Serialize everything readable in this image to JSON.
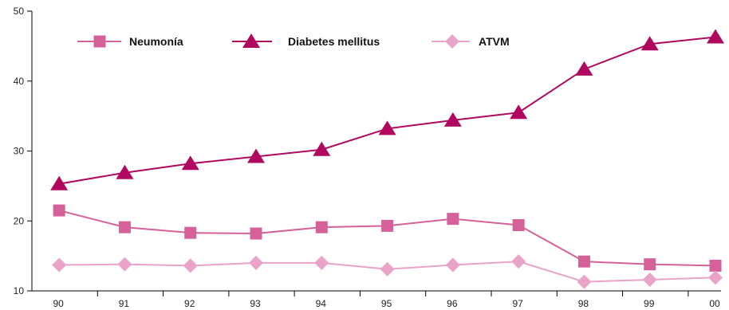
{
  "chart_data": {
    "type": "line",
    "title": "",
    "xlabel": "",
    "ylabel": "",
    "categories": [
      "90",
      "91",
      "92",
      "93",
      "94",
      "95",
      "96",
      "97",
      "98",
      "99",
      "00"
    ],
    "ylim": [
      10,
      50
    ],
    "yticks": [
      "10",
      "20",
      "30",
      "40",
      "50"
    ],
    "grid": false,
    "legend": "top-left",
    "series": [
      {
        "name": "Neumonía",
        "marker": "square",
        "color": "#d6609a",
        "values": [
          21.5,
          19.1,
          18.3,
          18.2,
          19.1,
          19.3,
          20.3,
          19.4,
          14.2,
          13.8,
          13.6
        ]
      },
      {
        "name": "Diabetes mellitus",
        "marker": "triangle",
        "color": "#b0085e",
        "values": [
          25.3,
          26.9,
          28.2,
          29.2,
          30.2,
          33.2,
          34.4,
          35.5,
          41.7,
          45.3,
          46.3
        ]
      },
      {
        "name": "ATVM",
        "marker": "diamond",
        "color": "#e9a3c8",
        "values": [
          13.7,
          13.8,
          13.6,
          14.0,
          14.0,
          13.1,
          13.7,
          14.2,
          11.3,
          11.6,
          11.9
        ]
      }
    ]
  }
}
